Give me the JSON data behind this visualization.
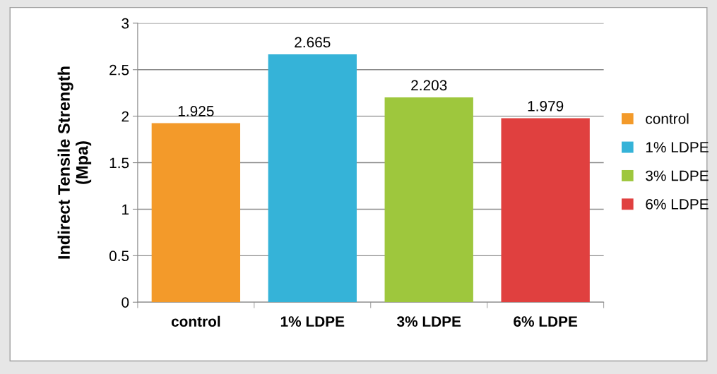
{
  "chart_data": {
    "type": "bar",
    "ylabel": "Indirect Tensile Strength\n(Mpa)",
    "categories": [
      "control",
      "1% LDPE",
      "3% LDPE",
      "6% LDPE"
    ],
    "series": [
      {
        "name": "control",
        "color": "#f39a2a",
        "values": [
          1.925,
          null,
          null,
          null
        ]
      },
      {
        "name": "1% LDPE",
        "color": "#35b3d8",
        "values": [
          null,
          2.665,
          null,
          null
        ]
      },
      {
        "name": "3% LDPE",
        "color": "#9ec73d",
        "values": [
          null,
          null,
          2.203,
          null
        ]
      },
      {
        "name": "6% LDPE",
        "color": "#e0403f",
        "values": [
          null,
          null,
          null,
          1.979
        ]
      }
    ],
    "ylim": [
      0,
      3
    ],
    "yticks": [
      0,
      0.5,
      1,
      1.5,
      2,
      2.5,
      3
    ],
    "grid": "y",
    "legend": "right",
    "data_labels": true
  }
}
